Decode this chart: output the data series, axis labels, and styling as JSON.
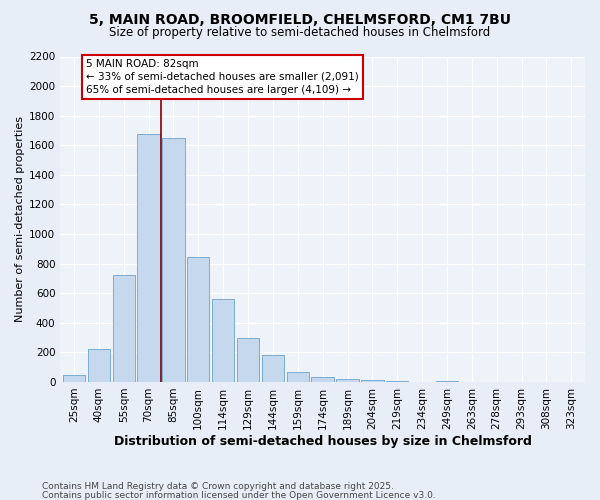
{
  "title1": "5, MAIN ROAD, BROOMFIELD, CHELMSFORD, CM1 7BU",
  "title2": "Size of property relative to semi-detached houses in Chelmsford",
  "xlabel": "Distribution of semi-detached houses by size in Chelmsford",
  "ylabel": "Number of semi-detached properties",
  "categories": [
    "25sqm",
    "40sqm",
    "55sqm",
    "70sqm",
    "85sqm",
    "100sqm",
    "114sqm",
    "129sqm",
    "144sqm",
    "159sqm",
    "174sqm",
    "189sqm",
    "204sqm",
    "219sqm",
    "234sqm",
    "249sqm",
    "263sqm",
    "278sqm",
    "293sqm",
    "308sqm",
    "323sqm"
  ],
  "values": [
    45,
    225,
    725,
    1675,
    1650,
    845,
    560,
    295,
    180,
    65,
    35,
    18,
    12,
    5,
    2,
    8,
    2,
    1,
    0,
    0,
    0
  ],
  "bar_color": "#c5d8ee",
  "bar_edge_color": "#7aadd4",
  "red_line_x": 3.5,
  "annotation_text": "5 MAIN ROAD: 82sqm\n← 33% of semi-detached houses are smaller (2,091)\n65% of semi-detached houses are larger (4,109) →",
  "ylim": [
    0,
    2200
  ],
  "yticks": [
    0,
    200,
    400,
    600,
    800,
    1000,
    1200,
    1400,
    1600,
    1800,
    2000,
    2200
  ],
  "footer1": "Contains HM Land Registry data © Crown copyright and database right 2025.",
  "footer2": "Contains public sector information licensed under the Open Government Licence v3.0.",
  "bg_color": "#e8eef8",
  "plot_bg_color": "#eef3f9",
  "grid_color": "#ffffff",
  "title1_fontsize": 10,
  "title2_fontsize": 8.5,
  "xlabel_fontsize": 9,
  "ylabel_fontsize": 8,
  "tick_fontsize": 7.5,
  "annot_fontsize": 7.5,
  "footer_fontsize": 6.5
}
